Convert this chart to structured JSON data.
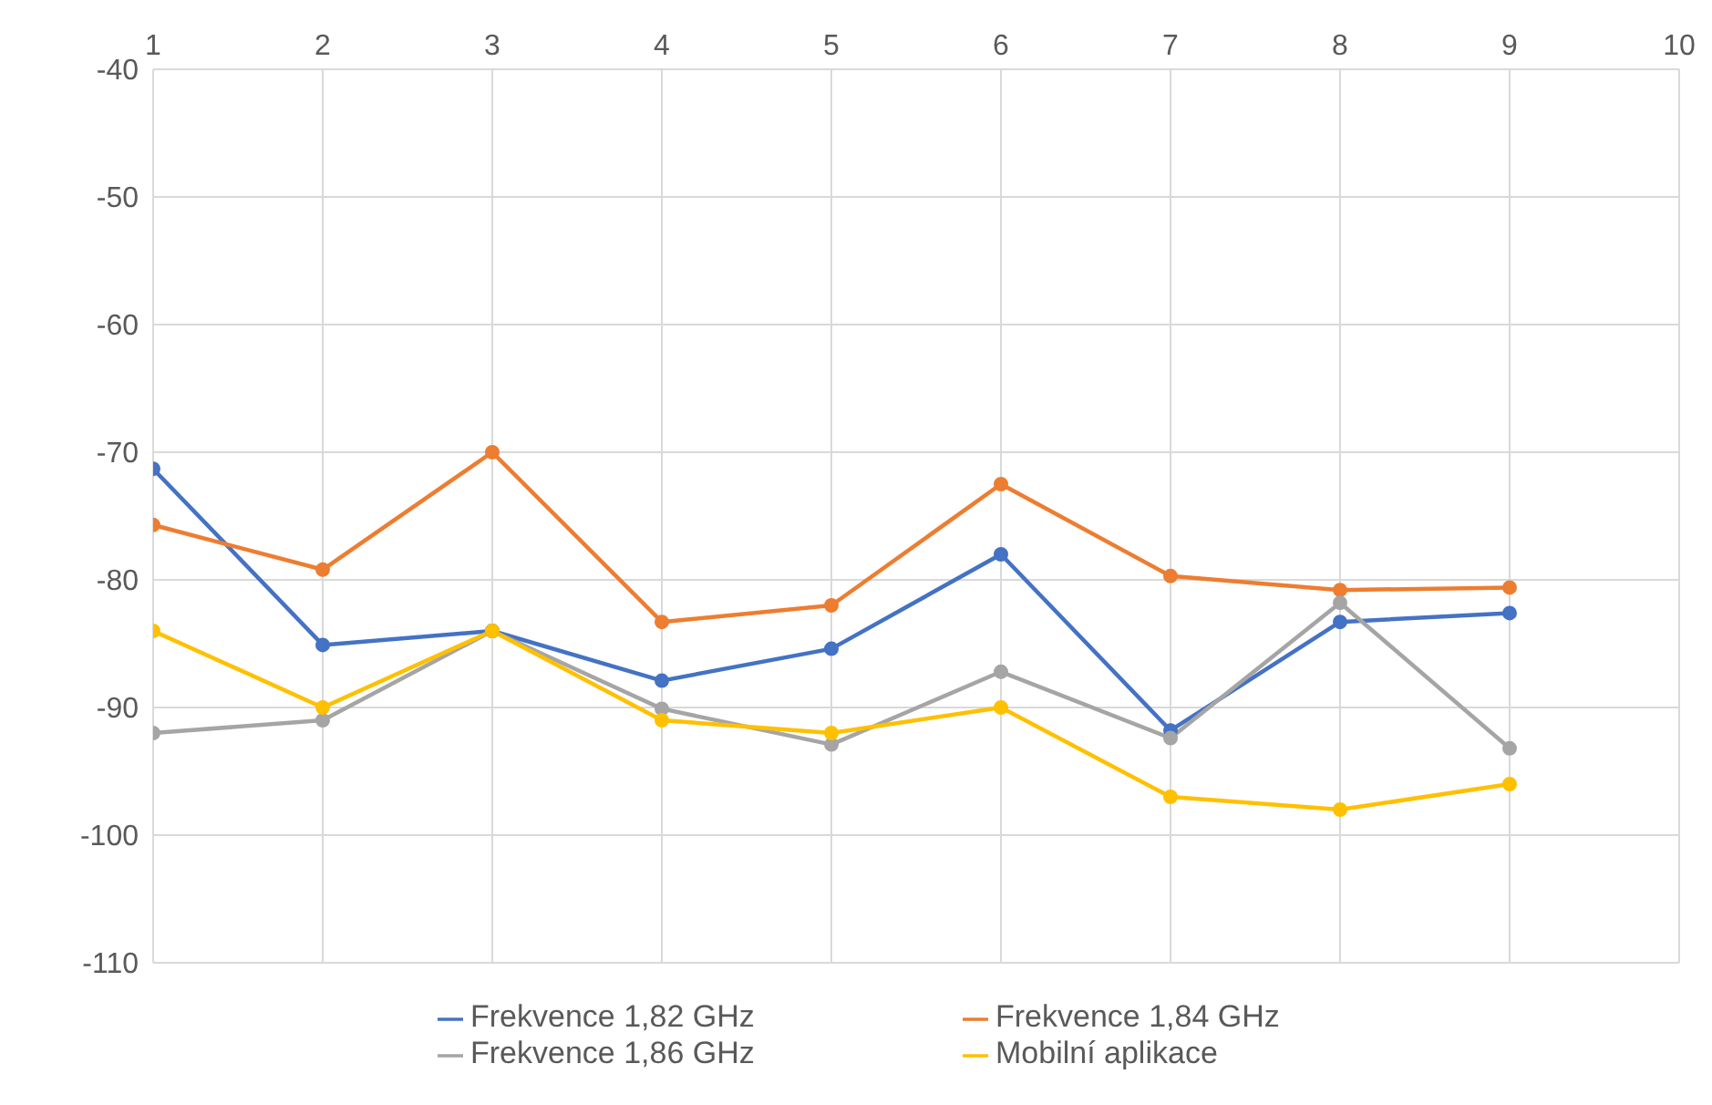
{
  "chart_data": {
    "type": "line",
    "x": [
      1,
      2,
      3,
      4,
      5,
      6,
      7,
      8,
      9
    ],
    "series": [
      {
        "name": "Frekvence 1,82 GHz",
        "color": "#4472c4",
        "values": [
          -71.3,
          -85.1,
          -84,
          -87.9,
          -85.4,
          -78,
          -91.8,
          -83.3,
          -82.6
        ]
      },
      {
        "name": "Frekvence 1,84 GHz",
        "color": "#ed7d31",
        "values": [
          -75.7,
          -79.2,
          -70,
          -83.3,
          -82,
          -72.5,
          -79.7,
          -80.8,
          -80.6
        ]
      },
      {
        "name": "Frekvence 1,86 GHz",
        "color": "#a5a5a5",
        "values": [
          -92,
          -91,
          -84,
          -90.1,
          -92.9,
          -87.2,
          -92.4,
          -81.8,
          -93.2
        ]
      },
      {
        "name": "Mobilní aplikace",
        "color": "#ffc000",
        "values": [
          -84,
          -90,
          -84,
          -91,
          -92,
          -90,
          -97,
          -98,
          -96
        ]
      }
    ],
    "xlim": [
      1,
      10
    ],
    "xticks": [
      1,
      2,
      3,
      4,
      5,
      6,
      7,
      8,
      9,
      10
    ],
    "ylim": [
      -110,
      -40
    ],
    "yticks": [
      -110,
      -100,
      -90,
      -80,
      -70,
      -60,
      -50,
      -40
    ],
    "grid": true,
    "legend": "bottom",
    "marker": "circle",
    "line_style": "solid"
  }
}
